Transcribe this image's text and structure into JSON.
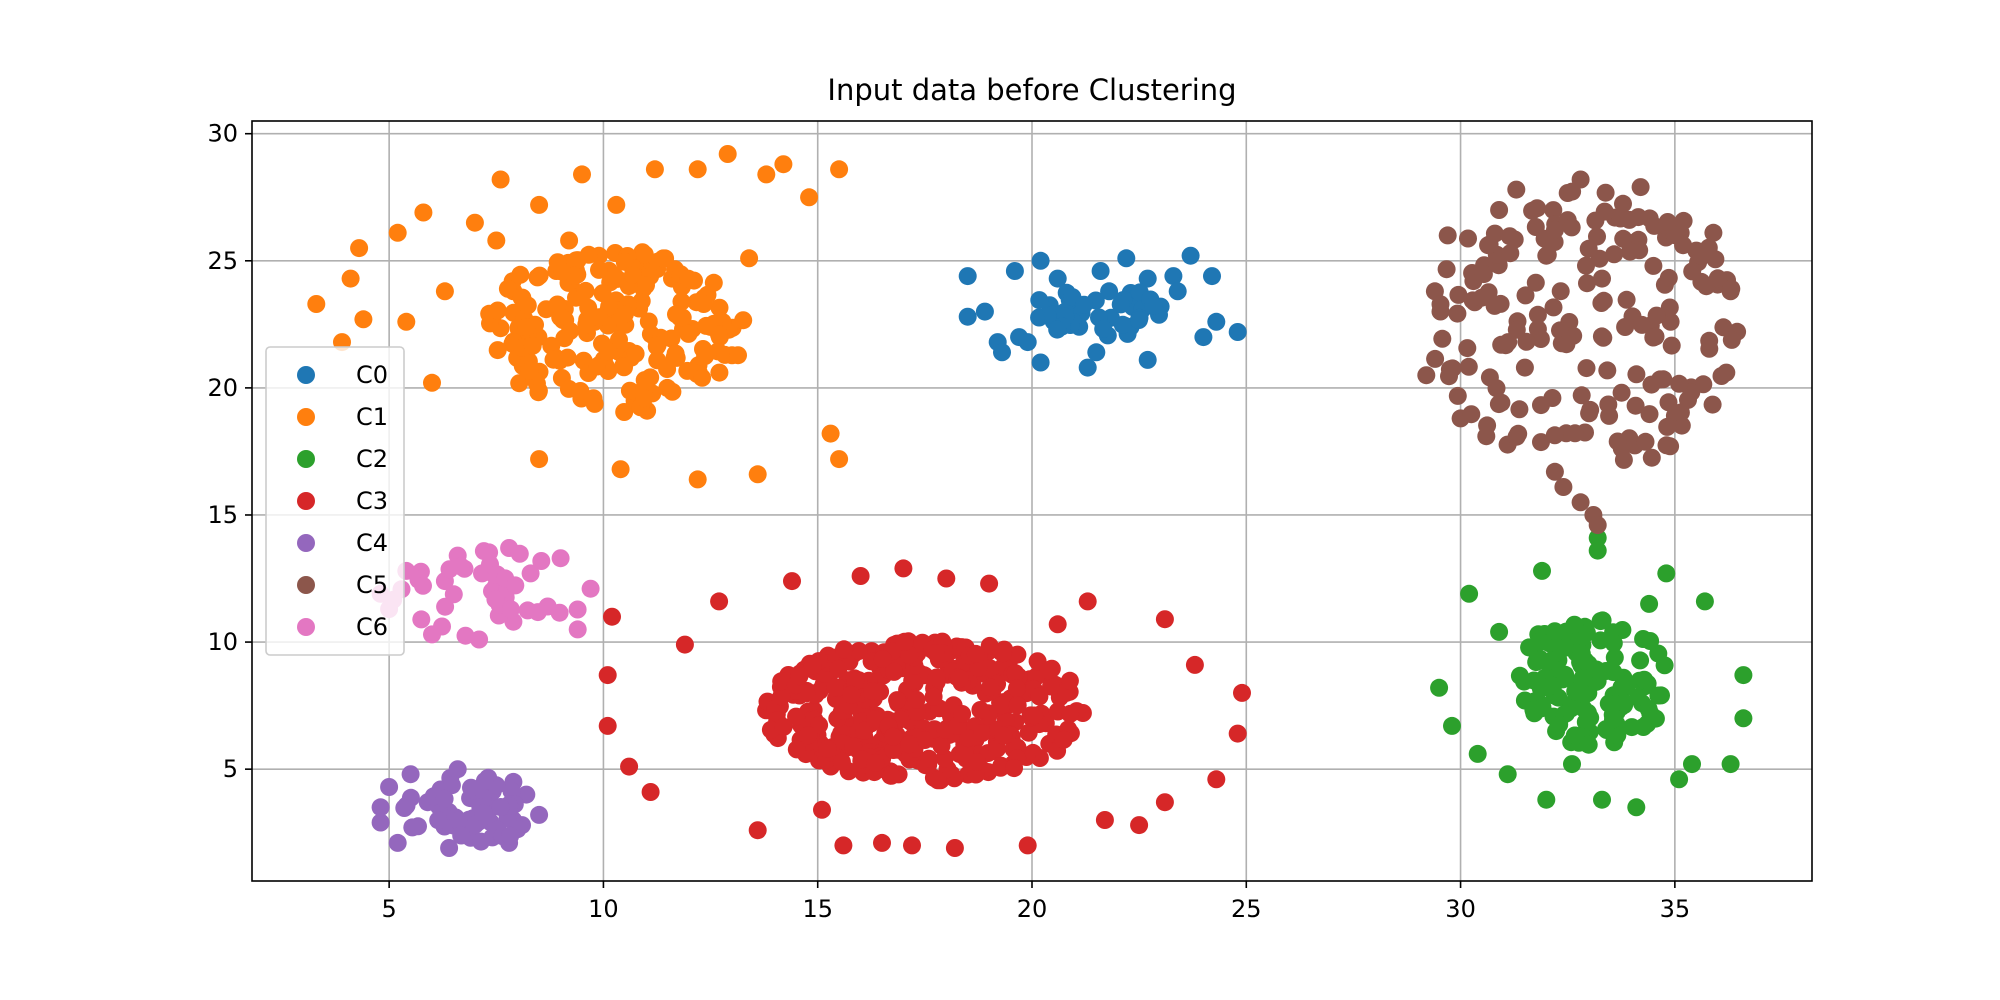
{
  "chart_data": {
    "type": "scatter",
    "title": "Input data before Clustering",
    "xlabel": "",
    "ylabel": "",
    "xlim": [
      1.8,
      38.2
    ],
    "ylim": [
      0.6,
      30.5
    ],
    "xticks": [
      5,
      10,
      15,
      20,
      25,
      30,
      35
    ],
    "yticks": [
      5,
      10,
      15,
      20,
      25,
      30
    ],
    "grid": true,
    "legend": {
      "placement": "center-left",
      "entries": [
        "C0",
        "C1",
        "C2",
        "C3",
        "C4",
        "C5",
        "C6"
      ]
    },
    "series": [
      {
        "name": "C0",
        "color": "#1f77b4",
        "center": [
          21.6,
          23.0
        ],
        "spread": [
          3.2,
          2.1
        ],
        "count": 70,
        "seed": 11,
        "points": [
          [
            18.5,
            24.4
          ],
          [
            18.5,
            22.8
          ],
          [
            18.9,
            23.0
          ],
          [
            19.2,
            21.8
          ],
          [
            19.3,
            21.4
          ],
          [
            19.6,
            24.6
          ],
          [
            19.7,
            22.0
          ],
          [
            19.9,
            21.8
          ],
          [
            20.2,
            25.0
          ],
          [
            20.2,
            21.0
          ],
          [
            20.6,
            24.3
          ],
          [
            20.7,
            22.8
          ],
          [
            21.1,
            22.9
          ],
          [
            21.3,
            20.8
          ],
          [
            21.5,
            21.4
          ],
          [
            21.6,
            24.6
          ],
          [
            21.8,
            23.8
          ],
          [
            22.2,
            25.1
          ],
          [
            22.3,
            22.4
          ],
          [
            22.7,
            24.3
          ],
          [
            22.7,
            21.1
          ],
          [
            23.0,
            23.2
          ],
          [
            23.3,
            24.4
          ],
          [
            23.4,
            23.8
          ],
          [
            23.7,
            25.2
          ],
          [
            24.0,
            22.0
          ],
          [
            24.2,
            24.4
          ],
          [
            24.3,
            22.6
          ],
          [
            24.8,
            22.2
          ]
        ]
      },
      {
        "name": "C1",
        "color": "#ff7f0e",
        "center": [
          10.2,
          22.2
        ],
        "spread": [
          6.2,
          6.5
        ],
        "count": 230,
        "seed": 23,
        "points": [
          [
            3.3,
            23.3
          ],
          [
            3.9,
            21.8
          ],
          [
            4.1,
            24.3
          ],
          [
            4.3,
            25.5
          ],
          [
            4.4,
            22.7
          ],
          [
            5.2,
            26.1
          ],
          [
            5.4,
            22.6
          ],
          [
            5.8,
            26.9
          ],
          [
            6.0,
            20.2
          ],
          [
            6.3,
            23.8
          ],
          [
            7.0,
            26.5
          ],
          [
            7.5,
            25.8
          ],
          [
            7.6,
            28.2
          ],
          [
            7.9,
            23.8
          ],
          [
            8.2,
            21.6
          ],
          [
            8.5,
            27.2
          ],
          [
            8.9,
            24.6
          ],
          [
            9.2,
            25.8
          ],
          [
            9.5,
            28.4
          ],
          [
            9.8,
            22.6
          ],
          [
            10.3,
            27.2
          ],
          [
            10.6,
            23.2
          ],
          [
            11.2,
            28.6
          ],
          [
            11.6,
            24.3
          ],
          [
            12.2,
            28.6
          ],
          [
            12.5,
            22.4
          ],
          [
            12.9,
            29.2
          ],
          [
            13.4,
            25.1
          ],
          [
            13.8,
            28.4
          ],
          [
            14.2,
            28.8
          ],
          [
            14.8,
            27.5
          ],
          [
            15.5,
            28.6
          ],
          [
            15.5,
            17.2
          ],
          [
            12.2,
            16.4
          ],
          [
            10.4,
            16.8
          ],
          [
            8.5,
            17.2
          ],
          [
            13.6,
            16.6
          ],
          [
            15.3,
            18.2
          ]
        ]
      },
      {
        "name": "C2",
        "color": "#2ca02c",
        "center": [
          33.0,
          8.4
        ],
        "spread": [
          3.8,
          5.0
        ],
        "count": 150,
        "seed": 37,
        "points": [
          [
            29.5,
            8.2
          ],
          [
            29.8,
            6.7
          ],
          [
            30.2,
            11.9
          ],
          [
            30.4,
            5.6
          ],
          [
            30.9,
            10.4
          ],
          [
            31.1,
            4.8
          ],
          [
            31.5,
            7.7
          ],
          [
            31.9,
            12.8
          ],
          [
            32.0,
            3.8
          ],
          [
            32.6,
            5.2
          ],
          [
            32.9,
            10.6
          ],
          [
            33.2,
            14.1
          ],
          [
            33.2,
            13.6
          ],
          [
            33.3,
            3.8
          ],
          [
            33.8,
            8.6
          ],
          [
            34.1,
            3.5
          ],
          [
            34.4,
            11.5
          ],
          [
            34.8,
            12.7
          ],
          [
            35.1,
            4.6
          ],
          [
            35.4,
            5.2
          ],
          [
            35.7,
            11.6
          ],
          [
            36.3,
            5.2
          ],
          [
            36.6,
            7.0
          ],
          [
            36.6,
            8.7
          ]
        ]
      },
      {
        "name": "C3",
        "color": "#d62728",
        "center": [
          17.5,
          7.3
        ],
        "spread": [
          7.5,
          5.6
        ],
        "count": 420,
        "seed": 41,
        "points": [
          [
            10.1,
            8.7
          ],
          [
            10.1,
            6.7
          ],
          [
            10.2,
            11.0
          ],
          [
            10.6,
            5.1
          ],
          [
            11.1,
            4.1
          ],
          [
            11.9,
            9.9
          ],
          [
            12.7,
            11.6
          ],
          [
            13.6,
            2.6
          ],
          [
            14.4,
            12.4
          ],
          [
            15.1,
            3.4
          ],
          [
            15.6,
            2.0
          ],
          [
            16.0,
            12.6
          ],
          [
            16.5,
            2.1
          ],
          [
            17.0,
            12.9
          ],
          [
            17.2,
            2.0
          ],
          [
            18.0,
            12.5
          ],
          [
            18.2,
            1.9
          ],
          [
            19.0,
            12.3
          ],
          [
            19.9,
            2.0
          ],
          [
            20.6,
            10.7
          ],
          [
            21.3,
            11.6
          ],
          [
            21.7,
            3.0
          ],
          [
            22.5,
            2.8
          ],
          [
            23.1,
            10.9
          ],
          [
            23.1,
            3.7
          ],
          [
            23.8,
            9.1
          ],
          [
            24.3,
            4.6
          ],
          [
            24.9,
            8.0
          ],
          [
            24.8,
            6.4
          ]
        ]
      },
      {
        "name": "C4",
        "color": "#9467bd",
        "center": [
          6.8,
          3.4
        ],
        "spread": [
          2.9,
          2.9
        ],
        "count": 70,
        "seed": 53,
        "points": [
          [
            4.8,
            2.9
          ],
          [
            4.8,
            3.5
          ],
          [
            5.0,
            4.3
          ],
          [
            5.2,
            2.1
          ],
          [
            5.5,
            4.8
          ],
          [
            5.9,
            3.7
          ],
          [
            6.2,
            4.2
          ],
          [
            6.4,
            1.9
          ],
          [
            6.6,
            5.0
          ],
          [
            6.9,
            2.3
          ],
          [
            7.2,
            4.3
          ],
          [
            7.4,
            3.5
          ],
          [
            7.8,
            2.1
          ],
          [
            7.9,
            4.5
          ],
          [
            8.1,
            2.8
          ],
          [
            8.2,
            4.0
          ],
          [
            8.5,
            3.2
          ]
        ]
      },
      {
        "name": "C5",
        "color": "#8c564b",
        "center": [
          32.9,
          22.3
        ],
        "spread": [
          7.2,
          11.2
        ],
        "count": 200,
        "seed": 67,
        "points": [
          [
            29.2,
            20.5
          ],
          [
            29.4,
            23.8
          ],
          [
            29.7,
            26.0
          ],
          [
            30.0,
            18.8
          ],
          [
            30.3,
            24.2
          ],
          [
            30.6,
            18.1
          ],
          [
            30.9,
            27.0
          ],
          [
            31.3,
            27.8
          ],
          [
            31.5,
            20.8
          ],
          [
            32.0,
            25.2
          ],
          [
            32.5,
            26.6
          ],
          [
            32.8,
            28.2
          ],
          [
            33.0,
            19.0
          ],
          [
            33.3,
            24.3
          ],
          [
            33.6,
            26.7
          ],
          [
            34.2,
            27.9
          ],
          [
            34.5,
            24.8
          ],
          [
            34.9,
            22.6
          ],
          [
            35.0,
            18.9
          ],
          [
            35.5,
            25.4
          ],
          [
            35.9,
            26.1
          ],
          [
            36.2,
            20.6
          ],
          [
            36.3,
            23.8
          ],
          [
            32.2,
            16.7
          ],
          [
            32.4,
            16.1
          ],
          [
            32.8,
            15.5
          ],
          [
            33.1,
            15.0
          ],
          [
            33.2,
            14.6
          ]
        ]
      },
      {
        "name": "C6",
        "color": "#e377c2",
        "center": [
          7.3,
          11.8
        ],
        "spread": [
          4.6,
          3.6
        ],
        "count": 50,
        "seed": 79,
        "points": [
          [
            4.8,
            11.9
          ],
          [
            5.0,
            11.3
          ],
          [
            5.4,
            12.8
          ],
          [
            6.0,
            10.3
          ],
          [
            6.3,
            12.4
          ],
          [
            6.6,
            13.4
          ],
          [
            7.1,
            10.1
          ],
          [
            7.4,
            12.0
          ],
          [
            7.8,
            13.7
          ],
          [
            7.9,
            10.8
          ],
          [
            8.3,
            12.7
          ],
          [
            8.7,
            11.4
          ],
          [
            9.0,
            13.3
          ],
          [
            9.4,
            10.5
          ],
          [
            9.7,
            12.1
          ]
        ]
      }
    ]
  }
}
